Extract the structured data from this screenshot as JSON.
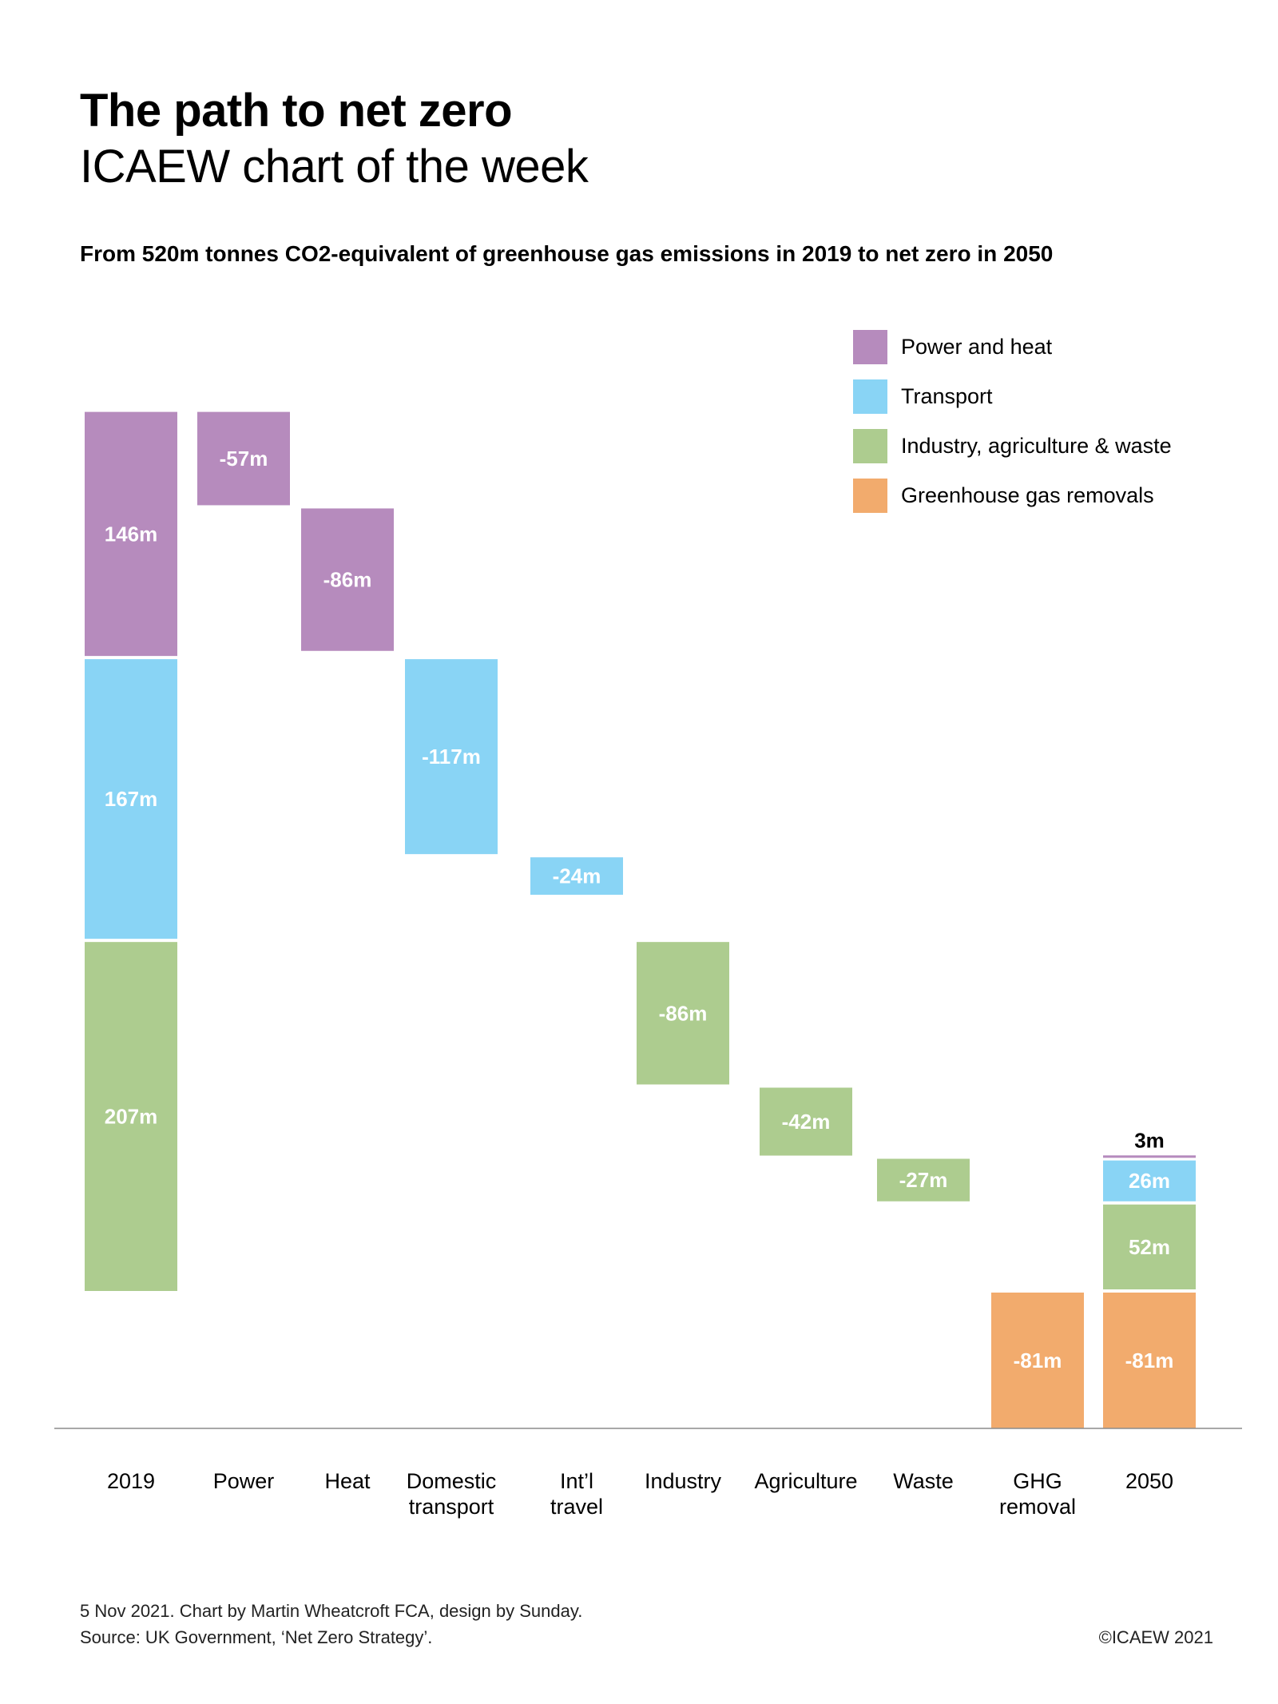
{
  "header": {
    "title": "The path to net zero",
    "series_name": "ICAEW chart of the week",
    "subtitle": "From 520m tonnes CO2-equivalent of greenhouse gas emissions in 2019 to net zero in 2050"
  },
  "footer": {
    "credit": "5 Nov 2021.   Chart by Martin Wheatcroft FCA, design by Sunday.",
    "source": "Source: UK Government, ‘Net Zero Strategy’.",
    "copyright": "©ICAEW 2021"
  },
  "colors": {
    "power_heat": "#B68BBD",
    "transport": "#89D4F5",
    "industry": "#ADCC8F",
    "removals": "#F2AB6D",
    "axis": "#8c8c8c"
  },
  "chart_data": {
    "type": "bar",
    "subtype": "waterfall",
    "title": "The path to net zero",
    "subtitle": "From 520m tonnes CO2-equivalent of greenhouse gas emissions in 2019 to net zero in 2050",
    "unit": "m tonnes CO2e",
    "xlabel": "",
    "ylabel": "",
    "ylim": [
      -81,
      520
    ],
    "grid": false,
    "legend_position": "top-right",
    "legend": [
      {
        "key": "power_heat",
        "label": "Power and heat"
      },
      {
        "key": "transport",
        "label": "Transport"
      },
      {
        "key": "industry",
        "label": "Industry, agriculture & waste"
      },
      {
        "key": "removals",
        "label": "Greenhouse gas removals"
      }
    ],
    "categories": [
      {
        "label": [
          "2019"
        ]
      },
      {
        "label": [
          "Power"
        ]
      },
      {
        "label": [
          "Heat"
        ]
      },
      {
        "label": [
          "Domestic",
          "transport"
        ]
      },
      {
        "label": [
          "Int’l",
          "travel"
        ]
      },
      {
        "label": [
          "Industry"
        ]
      },
      {
        "label": [
          "Agriculture"
        ]
      },
      {
        "label": [
          "Waste"
        ]
      },
      {
        "label": [
          "GHG",
          "removal"
        ]
      },
      {
        "label": [
          "2050"
        ]
      }
    ],
    "segments": [
      {
        "cat": 0,
        "series": "power_heat",
        "from": 374,
        "to": 520,
        "label": "146m",
        "value": 146
      },
      {
        "cat": 0,
        "series": "transport",
        "from": 207,
        "to": 374,
        "label": "167m",
        "value": 167
      },
      {
        "cat": 0,
        "series": "industry",
        "from": 0,
        "to": 207,
        "label": "207m",
        "value": 207
      },
      {
        "cat": 1,
        "series": "power_heat",
        "from": 463,
        "to": 520,
        "label": "-57m",
        "value": -57
      },
      {
        "cat": 2,
        "series": "power_heat",
        "from": 377,
        "to": 463,
        "label": "-86m",
        "value": -86
      },
      {
        "cat": 3,
        "series": "transport",
        "from": 257,
        "to": 374,
        "label": "-117m",
        "value": -117
      },
      {
        "cat": 4,
        "series": "transport",
        "from": 233,
        "to": 257,
        "label": "-24m",
        "value": -24
      },
      {
        "cat": 5,
        "series": "industry",
        "from": 121,
        "to": 207,
        "label": "-86m",
        "value": -86
      },
      {
        "cat": 6,
        "series": "industry",
        "from": 79,
        "to": 121,
        "label": "-42m",
        "value": -42
      },
      {
        "cat": 7,
        "series": "industry",
        "from": 52,
        "to": 79,
        "label": "-27m",
        "value": -27
      },
      {
        "cat": 8,
        "series": "removals",
        "from": -81,
        "to": 0,
        "label": "-81m",
        "value": -81
      },
      {
        "cat": 9,
        "series": "removals",
        "from": -81,
        "to": 0,
        "label": "-81m",
        "value": -81
      },
      {
        "cat": 9,
        "series": "industry",
        "from": 0,
        "to": 52,
        "label": "52m",
        "value": 52
      },
      {
        "cat": 9,
        "series": "transport",
        "from": 52,
        "to": 78,
        "label": "26m",
        "value": 26
      },
      {
        "cat": 9,
        "series": "power_heat",
        "from": 78,
        "to": 81,
        "label": "3m",
        "value": 3,
        "label_outside": true
      }
    ],
    "totals": {
      "2019": 520,
      "2050": 0
    }
  }
}
